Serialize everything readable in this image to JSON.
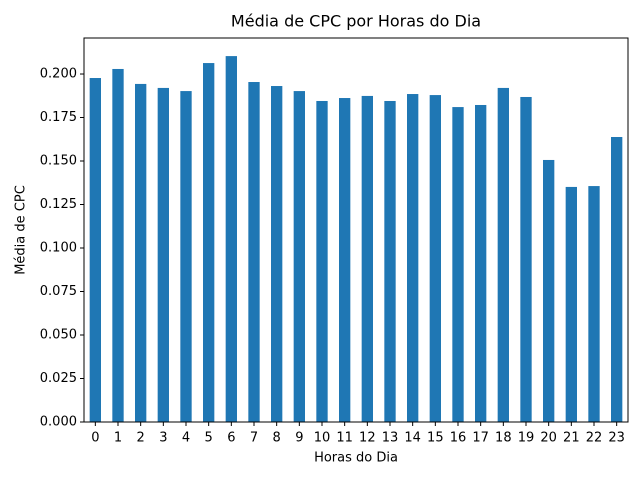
{
  "chart_data": {
    "type": "bar",
    "title": "Média de CPC por Horas do Dia",
    "x_label": "Horas do Dia",
    "y_label": "Média de CPC",
    "categories": [
      "0",
      "1",
      "2",
      "3",
      "4",
      "5",
      "6",
      "7",
      "8",
      "9",
      "10",
      "11",
      "12",
      "13",
      "14",
      "15",
      "16",
      "17",
      "18",
      "19",
      "20",
      "21",
      "22",
      "23"
    ],
    "values": [
      0.1977,
      0.2029,
      0.1943,
      0.192,
      0.1902,
      0.2063,
      0.2103,
      0.1954,
      0.1931,
      0.1902,
      0.1845,
      0.1862,
      0.1874,
      0.1845,
      0.1885,
      0.1879,
      0.181,
      0.1822,
      0.192,
      0.1868,
      0.1506,
      0.1351,
      0.1356,
      0.1638
    ],
    "color": "#1f77b4",
    "ylim": [
      0,
      0.2207
    ],
    "yticks": [
      {
        "value": 0,
        "label": "0.000"
      },
      {
        "value": 0.025,
        "label": "0.025"
      },
      {
        "value": 0.05,
        "label": "0.050"
      },
      {
        "value": 0.075,
        "label": "0.075"
      },
      {
        "value": 0.1,
        "label": "0.100"
      },
      {
        "value": 0.125,
        "label": "0.125"
      },
      {
        "value": 0.15,
        "label": "0.150"
      },
      {
        "value": 0.175,
        "label": "0.175"
      },
      {
        "value": 0.2,
        "label": "0.200"
      }
    ],
    "grid": false
  }
}
